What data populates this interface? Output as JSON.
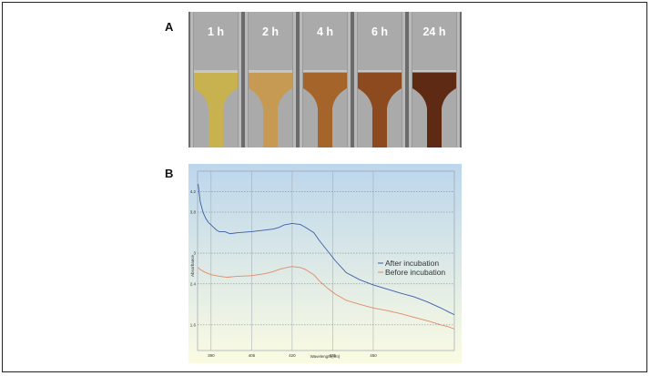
{
  "panels": {
    "a_label": "A",
    "b_label": "B"
  },
  "photo": {
    "tubes": [
      {
        "label": "1 h",
        "liquid_color": "#c8b14f"
      },
      {
        "label": "2 h",
        "liquid_color": "#c69a52"
      },
      {
        "label": "4 h",
        "liquid_color": "#a5652a"
      },
      {
        "label": "6 h",
        "liquid_color": "#8e4a1f"
      },
      {
        "label": "24 h",
        "liquid_color": "#5e2a14"
      }
    ],
    "background_color": "#6b6b6b"
  },
  "chart_data": {
    "type": "line",
    "title": "",
    "xlabel": "Wavelength(nm)",
    "ylabel": "Absorbance",
    "xlim": [
      385,
      480
    ],
    "ylim": [
      1.1,
      4.6
    ],
    "x_ticks": [
      390,
      405,
      420,
      435,
      450
    ],
    "x_tick_labels": [
      "390",
      "405",
      "420",
      "435",
      "450"
    ],
    "y_ticks": [
      1.6,
      2.4,
      3,
      3.8,
      4.2
    ],
    "y_tick_labels": [
      "1.6",
      "2.4",
      "3",
      "3.8",
      "4.2"
    ],
    "grid": true,
    "legend_position": "right",
    "background_gradient": [
      "#bcd6ec",
      "#fbfbe2"
    ],
    "series": [
      {
        "name": "After incubation",
        "color": "#3a5ea8",
        "x": [
          385.2,
          386,
          387,
          388,
          389,
          390,
          391,
          392,
          393,
          395,
          397,
          400,
          405,
          410,
          413,
          415,
          417,
          420,
          423,
          425,
          428,
          430,
          433,
          436,
          440,
          445,
          450,
          455,
          460,
          465,
          470,
          475,
          478,
          480
        ],
        "y": [
          4.35,
          4.0,
          3.8,
          3.68,
          3.6,
          3.55,
          3.5,
          3.45,
          3.42,
          3.42,
          3.38,
          3.4,
          3.42,
          3.45,
          3.47,
          3.5,
          3.55,
          3.58,
          3.56,
          3.5,
          3.4,
          3.25,
          3.05,
          2.85,
          2.62,
          2.48,
          2.38,
          2.3,
          2.22,
          2.15,
          2.05,
          1.93,
          1.85,
          1.8
        ]
      },
      {
        "name": "Before incubation",
        "color": "#e08a66",
        "x": [
          385.2,
          386,
          388,
          390,
          393,
          396,
          400,
          405,
          410,
          413,
          415,
          418,
          420,
          423,
          425,
          428,
          430,
          433,
          436,
          440,
          445,
          450,
          455,
          460,
          465,
          470,
          475,
          478,
          480
        ],
        "y": [
          2.72,
          2.68,
          2.62,
          2.58,
          2.55,
          2.53,
          2.55,
          2.56,
          2.6,
          2.64,
          2.68,
          2.72,
          2.74,
          2.72,
          2.68,
          2.58,
          2.46,
          2.32,
          2.2,
          2.08,
          2.0,
          1.93,
          1.88,
          1.82,
          1.75,
          1.68,
          1.6,
          1.56,
          1.52
        ]
      }
    ]
  }
}
